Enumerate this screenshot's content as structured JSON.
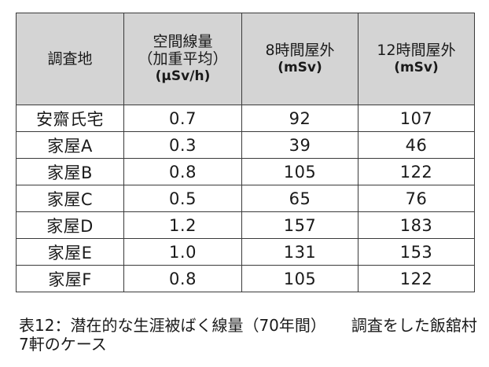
{
  "table": {
    "headers": [
      {
        "lines": [
          "調査地"
        ],
        "unit": ""
      },
      {
        "lines": [
          "空間線量",
          "（加重平均）"
        ],
        "unit": "(μSv/h)"
      },
      {
        "lines": [
          "8時間屋外"
        ],
        "unit": "(mSv)"
      },
      {
        "lines": [
          "12時間屋外"
        ],
        "unit": "(mSv)"
      }
    ],
    "rows": [
      [
        "安齋氏宅",
        "0.7",
        "92",
        "107"
      ],
      [
        "家屋A",
        "0.3",
        "39",
        "46"
      ],
      [
        "家屋B",
        "0.8",
        "105",
        "122"
      ],
      [
        "家屋C",
        "0.5",
        "65",
        "76"
      ],
      [
        "家屋D",
        "1.2",
        "157",
        "183"
      ],
      [
        "家屋E",
        "1.0",
        "131",
        "153"
      ],
      [
        "家屋F",
        "0.8",
        "105",
        "122"
      ]
    ]
  },
  "caption": {
    "part1": "表12：潜在的な生涯被ばく線量（70年間）",
    "part2": "調査をした飯舘村7軒のケース"
  }
}
